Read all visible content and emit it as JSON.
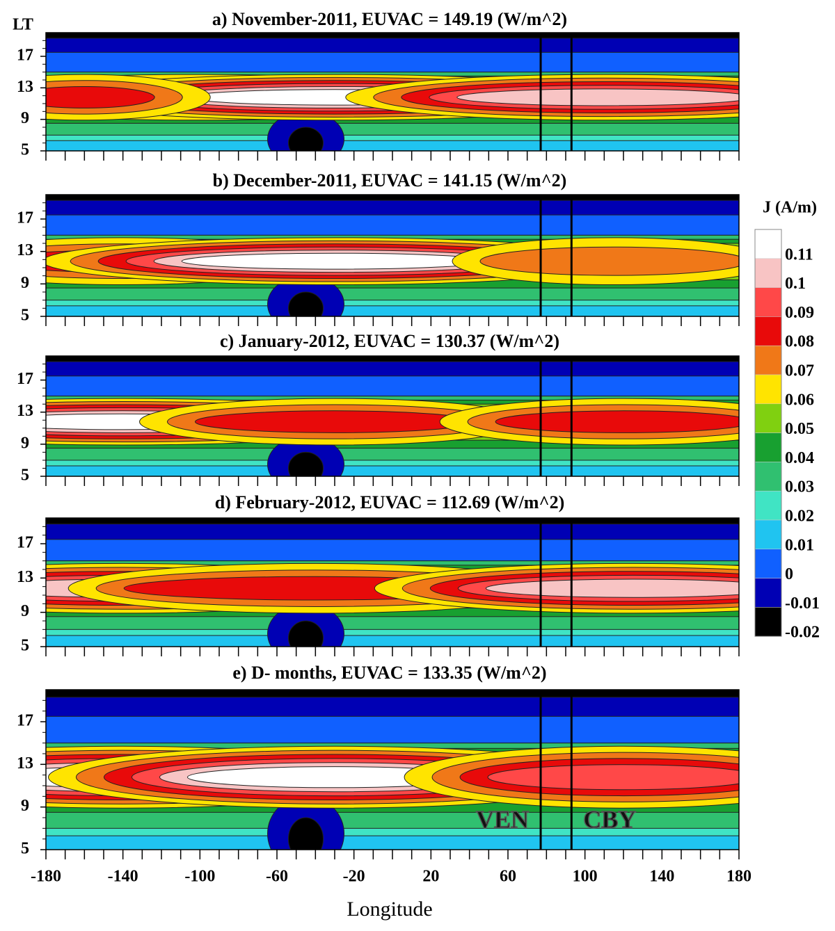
{
  "chart_data": {
    "type": "contour",
    "xlabel": "Longitude",
    "ylabel": "LT",
    "xlim": [
      -180,
      180
    ],
    "xticks": [
      -180,
      -140,
      -100,
      -60,
      -20,
      20,
      60,
      100,
      140,
      180
    ],
    "ylim": [
      5,
      20
    ],
    "yticks": [
      5,
      9,
      13,
      17
    ],
    "colorbar": {
      "title": "J (A/m)",
      "levels": [
        0.11,
        0.1,
        0.09,
        0.08,
        0.07,
        0.06,
        0.05,
        0.04,
        0.03,
        0.02,
        0.01,
        0,
        -0.01,
        -0.02
      ],
      "colors": [
        "#ffffff",
        "#f8c4c4",
        "#ff4848",
        "#e80a0a",
        "#f07818",
        "#ffe400",
        "#80d010",
        "#18a030",
        "#30c070",
        "#40e4c4",
        "#20c4f0",
        "#1060ff",
        "#0000b4",
        "#000000"
      ]
    },
    "stations": [
      {
        "name": "VEN",
        "x": 77
      },
      {
        "name": "CBY",
        "x": 93
      }
    ],
    "panels": [
      {
        "title": "a)  November-2011, EUVAC = 149.19 (W/m^2)"
      },
      {
        "title": "b)  December-2011, EUVAC = 141.15 (W/m^2)"
      },
      {
        "title": "c)  January-2012, EUVAC = 130.37 (W/m^2)"
      },
      {
        "title": "d)  February-2012, EUVAC = 112.69 (W/m^2)"
      },
      {
        "title": "e)  D- months, EUVAC = 133.35 (W/m^2)"
      }
    ]
  }
}
